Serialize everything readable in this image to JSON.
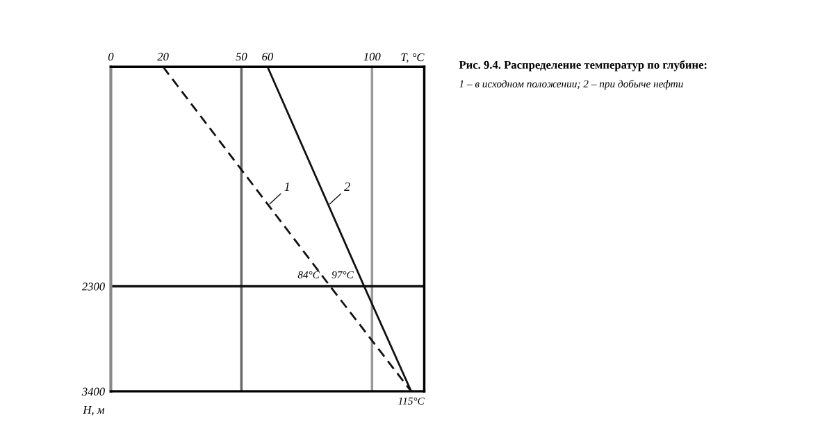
{
  "chart_data": {
    "type": "line",
    "title": "Рис. 9.4. Распределение температур по глубине:",
    "xlabel": "T, °C",
    "ylabel": "H, м",
    "xlim": [
      0,
      120
    ],
    "xticks": [
      0,
      20,
      50,
      60,
      100
    ],
    "ylim": [
      3400,
      0
    ],
    "yticks": [
      2300,
      3400
    ],
    "grid": false,
    "marker": "none",
    "ref_lines": [
      {
        "axis": "x",
        "value": 50,
        "color": "#666666"
      },
      {
        "axis": "x",
        "value": 100,
        "color": "#999999"
      },
      {
        "axis": "y",
        "value": 2300,
        "color": "#111111"
      }
    ],
    "series": [
      {
        "name": "1",
        "color": "#111111",
        "line_style": "dashed",
        "x": [
          20,
          84,
          115
        ],
        "values": [
          0,
          2300,
          3400
        ]
      },
      {
        "name": "2",
        "color": "#111111",
        "line_style": "solid",
        "x": [
          60,
          97,
          115
        ],
        "values": [
          0,
          2300,
          3400
        ]
      }
    ],
    "annotations": [
      {
        "text": "84°C",
        "x": 84,
        "y": 2300
      },
      {
        "text": "97°C",
        "x": 97,
        "y": 2300
      },
      {
        "text": "115°C",
        "x": 115,
        "y": 3400
      },
      "1 – в исходном положении; 2 – при добыче нефти"
    ]
  }
}
